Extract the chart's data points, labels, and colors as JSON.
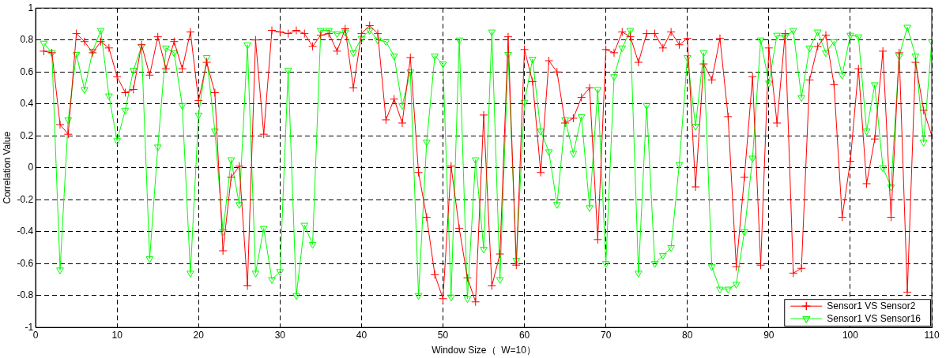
{
  "chart_data": {
    "type": "line",
    "xlabel": "Window Size（  W=10）",
    "ylabel": "Correlation Value",
    "x": [
      1,
      2,
      3,
      4,
      5,
      6,
      7,
      8,
      9,
      10,
      11,
      12,
      13,
      14,
      15,
      16,
      17,
      18,
      19,
      20,
      21,
      22,
      23,
      24,
      25,
      26,
      27,
      28,
      29,
      30,
      31,
      32,
      33,
      34,
      35,
      36,
      37,
      38,
      39,
      40,
      41,
      42,
      43,
      44,
      45,
      46,
      47,
      48,
      49,
      50,
      51,
      52,
      53,
      54,
      55,
      56,
      57,
      58,
      59,
      60,
      61,
      62,
      63,
      64,
      65,
      66,
      67,
      68,
      69,
      70,
      71,
      72,
      73,
      74,
      75,
      76,
      77,
      78,
      79,
      80,
      81,
      82,
      83,
      84,
      85,
      86,
      87,
      88,
      89,
      90,
      91,
      92,
      93,
      94,
      95,
      96,
      97,
      98,
      99,
      100,
      101,
      102,
      103,
      104,
      105,
      106,
      107,
      108,
      109,
      110
    ],
    "series": [
      {
        "name": "Sensor1 VS Sensor2",
        "color": "#ff0000",
        "marker": "cross",
        "values": [
          0.73,
          0.72,
          0.27,
          0.21,
          0.84,
          0.79,
          0.72,
          0.79,
          0.75,
          0.57,
          0.47,
          0.49,
          0.77,
          0.58,
          0.82,
          0.62,
          0.79,
          0.62,
          0.85,
          0.42,
          0.66,
          0.47,
          -0.52,
          -0.06,
          0.01,
          -0.74,
          0.8,
          0.21,
          0.86,
          0.85,
          0.84,
          0.86,
          0.84,
          0.76,
          0.83,
          0.84,
          0.73,
          0.87,
          0.5,
          0.84,
          0.89,
          0.84,
          0.3,
          0.43,
          0.28,
          0.69,
          -0.03,
          -0.31,
          -0.67,
          -0.82,
          0.01,
          -0.38,
          -0.69,
          -0.84,
          0.33,
          -0.74,
          -0.54,
          0.82,
          -0.61,
          0.74,
          0.54,
          -0.03,
          0.67,
          0.6,
          0.28,
          0.31,
          0.44,
          0.5,
          -0.45,
          0.74,
          0.72,
          0.85,
          0.82,
          0.66,
          0.84,
          0.84,
          0.75,
          0.85,
          0.77,
          0.81,
          -0.12,
          0.65,
          0.55,
          0.81,
          0.32,
          -0.62,
          -0.06,
          0.57,
          -0.61,
          0.75,
          0.28,
          0.84,
          -0.66,
          -0.63,
          0.55,
          0.76,
          0.83,
          0.52,
          -0.31,
          0.04,
          0.62,
          -0.1,
          0.18,
          0.73,
          -0.31,
          0.72,
          -0.78,
          0.66,
          0.36,
          0.2
        ]
      },
      {
        "name": "Sensor1 VS Sensor16",
        "color": "#00ff00",
        "marker": "triangle",
        "values": [
          0.78,
          0.72,
          -0.64,
          0.3,
          0.71,
          0.49,
          0.73,
          0.86,
          0.45,
          0.17,
          0.36,
          0.61,
          0.76,
          -0.57,
          0.13,
          0.75,
          0.72,
          0.39,
          -0.66,
          0.33,
          0.69,
          0.23,
          -0.4,
          0.05,
          -0.23,
          0.77,
          -0.66,
          -0.38,
          -0.7,
          -0.65,
          0.61,
          -0.8,
          -0.36,
          -0.48,
          0.86,
          0.86,
          0.84,
          0.85,
          0.72,
          0.81,
          0.86,
          0.8,
          0.79,
          0.7,
          0.39,
          0.6,
          -0.8,
          0.16,
          0.7,
          0.65,
          -0.81,
          0.8,
          -0.82,
          0.05,
          -0.51,
          0.85,
          -0.7,
          0.71,
          -0.58,
          0.41,
          0.68,
          0.23,
          0.1,
          -0.23,
          0.3,
          0.09,
          0.32,
          -0.25,
          0.49,
          -0.6,
          0.57,
          0.75,
          0.86,
          -0.66,
          0.39,
          -0.6,
          -0.55,
          -0.5,
          0.02,
          0.69,
          0.26,
          0.72,
          -0.62,
          -0.76,
          -0.76,
          -0.73,
          -0.4,
          0.06,
          0.8,
          0.53,
          0.83,
          0.82,
          0.86,
          0.44,
          0.75,
          0.85,
          0.72,
          0.79,
          0.58,
          0.83,
          0.82,
          0.23,
          0.52,
          0,
          -0.12,
          0.7,
          0.88,
          0.7,
          0.16,
          0.79
        ]
      }
    ],
    "xlim": [
      0,
      110
    ],
    "xticks": [
      0,
      10,
      20,
      30,
      40,
      50,
      60,
      70,
      80,
      90,
      100,
      110
    ],
    "ylim": [
      -1,
      1
    ],
    "yticks": [
      -1,
      -0.8,
      -0.6,
      -0.4,
      -0.2,
      0,
      0.2,
      0.4,
      0.6,
      0.8,
      1
    ],
    "grid": true,
    "line_style": "solid",
    "legend": "bottom right"
  }
}
